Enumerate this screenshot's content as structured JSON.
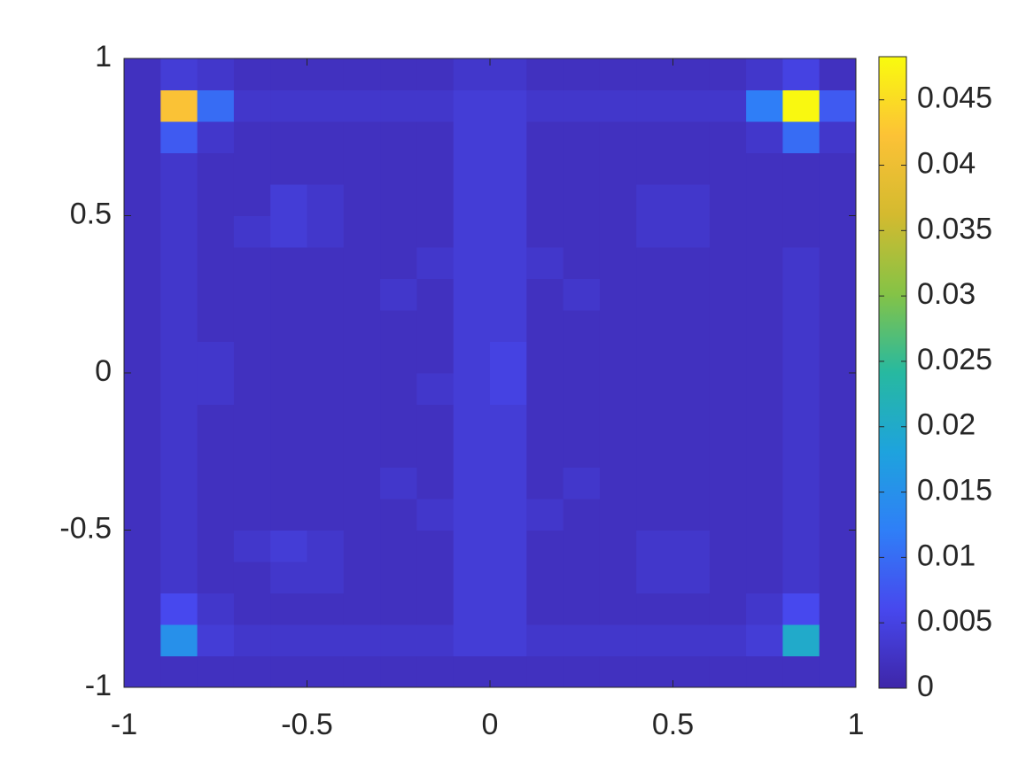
{
  "chart_data": {
    "type": "heatmap",
    "colormap": "parula",
    "x": [
      -0.95,
      -0.85,
      -0.75,
      -0.65,
      -0.55,
      -0.45,
      -0.35,
      -0.25,
      -0.15,
      -0.05,
      0.05,
      0.15,
      0.25,
      0.35,
      0.45,
      0.55,
      0.65,
      0.75,
      0.85,
      0.95
    ],
    "y": [
      -0.95,
      -0.85,
      -0.75,
      -0.65,
      -0.55,
      -0.45,
      -0.35,
      -0.25,
      -0.15,
      -0.05,
      0.05,
      0.15,
      0.25,
      0.35,
      0.45,
      0.55,
      0.65,
      0.75,
      0.85,
      0.95
    ],
    "z": [
      [
        0.002,
        0.002,
        0.002,
        0.002,
        0.002,
        0.002,
        0.002,
        0.002,
        0.002,
        0.002,
        0.002,
        0.002,
        0.002,
        0.002,
        0.002,
        0.002,
        0.002,
        0.002,
        0.002,
        0.002
      ],
      [
        0.002,
        0.015,
        0.004,
        0.003,
        0.003,
        0.003,
        0.003,
        0.003,
        0.003,
        0.004,
        0.004,
        0.003,
        0.003,
        0.003,
        0.003,
        0.003,
        0.003,
        0.004,
        0.02,
        0.002
      ],
      [
        0.002,
        0.006,
        0.003,
        0.002,
        0.002,
        0.002,
        0.002,
        0.002,
        0.002,
        0.004,
        0.004,
        0.002,
        0.002,
        0.002,
        0.002,
        0.002,
        0.002,
        0.003,
        0.006,
        0.002
      ],
      [
        0.002,
        0.003,
        0.002,
        0.002,
        0.003,
        0.003,
        0.002,
        0.002,
        0.002,
        0.004,
        0.004,
        0.002,
        0.002,
        0.002,
        0.003,
        0.003,
        0.002,
        0.002,
        0.003,
        0.002
      ],
      [
        0.002,
        0.003,
        0.002,
        0.003,
        0.004,
        0.003,
        0.002,
        0.002,
        0.002,
        0.004,
        0.004,
        0.002,
        0.002,
        0.002,
        0.003,
        0.003,
        0.002,
        0.002,
        0.003,
        0.002
      ],
      [
        0.002,
        0.003,
        0.002,
        0.002,
        0.002,
        0.002,
        0.002,
        0.002,
        0.003,
        0.004,
        0.004,
        0.003,
        0.002,
        0.002,
        0.002,
        0.002,
        0.002,
        0.002,
        0.003,
        0.002
      ],
      [
        0.002,
        0.003,
        0.002,
        0.002,
        0.002,
        0.002,
        0.002,
        0.003,
        0.002,
        0.004,
        0.004,
        0.002,
        0.003,
        0.002,
        0.002,
        0.002,
        0.002,
        0.002,
        0.003,
        0.002
      ],
      [
        0.002,
        0.003,
        0.002,
        0.002,
        0.002,
        0.002,
        0.002,
        0.002,
        0.002,
        0.004,
        0.004,
        0.002,
        0.002,
        0.002,
        0.002,
        0.002,
        0.002,
        0.002,
        0.003,
        0.002
      ],
      [
        0.002,
        0.003,
        0.002,
        0.002,
        0.002,
        0.002,
        0.002,
        0.002,
        0.002,
        0.004,
        0.004,
        0.002,
        0.002,
        0.002,
        0.002,
        0.002,
        0.002,
        0.002,
        0.003,
        0.002
      ],
      [
        0.002,
        0.003,
        0.003,
        0.002,
        0.002,
        0.002,
        0.002,
        0.002,
        0.003,
        0.004,
        0.005,
        0.002,
        0.002,
        0.002,
        0.002,
        0.002,
        0.002,
        0.002,
        0.003,
        0.002
      ],
      [
        0.002,
        0.003,
        0.003,
        0.002,
        0.002,
        0.002,
        0.002,
        0.002,
        0.002,
        0.004,
        0.005,
        0.002,
        0.002,
        0.002,
        0.002,
        0.002,
        0.002,
        0.002,
        0.003,
        0.002
      ],
      [
        0.002,
        0.003,
        0.002,
        0.002,
        0.002,
        0.002,
        0.002,
        0.002,
        0.002,
        0.004,
        0.004,
        0.002,
        0.002,
        0.002,
        0.002,
        0.002,
        0.002,
        0.002,
        0.003,
        0.002
      ],
      [
        0.002,
        0.003,
        0.002,
        0.002,
        0.002,
        0.002,
        0.002,
        0.003,
        0.002,
        0.004,
        0.004,
        0.002,
        0.003,
        0.002,
        0.002,
        0.002,
        0.002,
        0.002,
        0.003,
        0.002
      ],
      [
        0.002,
        0.003,
        0.002,
        0.002,
        0.002,
        0.002,
        0.002,
        0.002,
        0.003,
        0.004,
        0.004,
        0.003,
        0.002,
        0.002,
        0.002,
        0.002,
        0.002,
        0.002,
        0.003,
        0.002
      ],
      [
        0.002,
        0.003,
        0.002,
        0.003,
        0.004,
        0.003,
        0.002,
        0.002,
        0.002,
        0.004,
        0.004,
        0.002,
        0.002,
        0.002,
        0.003,
        0.003,
        0.002,
        0.002,
        0.002,
        0.002
      ],
      [
        0.002,
        0.003,
        0.002,
        0.002,
        0.004,
        0.003,
        0.002,
        0.002,
        0.002,
        0.004,
        0.004,
        0.002,
        0.002,
        0.002,
        0.003,
        0.003,
        0.002,
        0.002,
        0.002,
        0.002
      ],
      [
        0.002,
        0.003,
        0.002,
        0.002,
        0.002,
        0.002,
        0.002,
        0.002,
        0.002,
        0.004,
        0.004,
        0.002,
        0.002,
        0.002,
        0.002,
        0.002,
        0.002,
        0.002,
        0.002,
        0.002
      ],
      [
        0.002,
        0.008,
        0.003,
        0.002,
        0.002,
        0.002,
        0.002,
        0.002,
        0.002,
        0.004,
        0.004,
        0.002,
        0.002,
        0.002,
        0.002,
        0.002,
        0.002,
        0.003,
        0.01,
        0.003
      ],
      [
        0.002,
        0.042,
        0.01,
        0.003,
        0.003,
        0.003,
        0.003,
        0.003,
        0.003,
        0.004,
        0.004,
        0.003,
        0.003,
        0.003,
        0.003,
        0.003,
        0.003,
        0.012,
        0.048,
        0.008
      ],
      [
        0.002,
        0.004,
        0.003,
        0.002,
        0.002,
        0.002,
        0.002,
        0.002,
        0.002,
        0.003,
        0.003,
        0.002,
        0.002,
        0.002,
        0.002,
        0.002,
        0.002,
        0.003,
        0.005,
        0.002
      ]
    ],
    "xlim": [
      -1,
      1
    ],
    "ylim": [
      -1,
      1
    ],
    "xticks": [
      -1,
      -0.5,
      0,
      0.5,
      1
    ],
    "yticks": [
      -1,
      -0.5,
      0,
      0.5,
      1
    ],
    "clim": [
      0,
      0.0483
    ],
    "cticks": [
      0,
      0.005,
      0.01,
      0.015,
      0.02,
      0.025,
      0.03,
      0.035,
      0.04,
      0.045
    ]
  }
}
